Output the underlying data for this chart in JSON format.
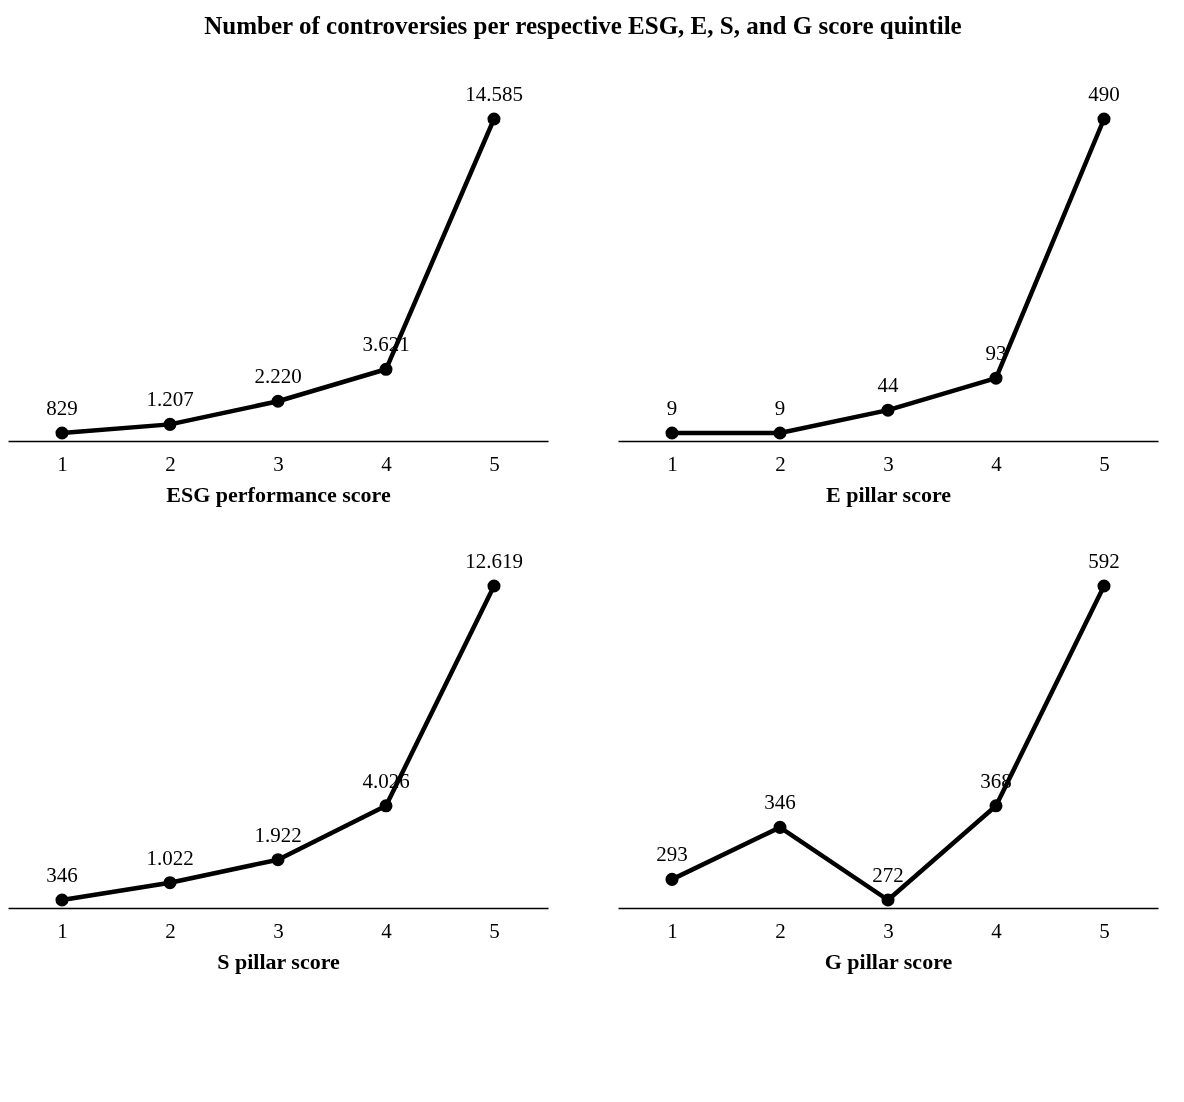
{
  "chart_data": [
    {
      "type": "line",
      "title": "Number of controversies per respective ESG, E, S, and G score quintile",
      "xlabel": "ESG performance score",
      "categories": [
        "1",
        "2",
        "3",
        "4",
        "5"
      ],
      "tick_labels": "x",
      "marker": "circle",
      "grid": false,
      "series": [
        {
          "color": "#000000",
          "values": [
            829,
            1207,
            2220,
            3621,
            14585
          ],
          "value_labels": [
            "829",
            "1.207",
            "2.220",
            "3.621",
            "14.585"
          ]
        }
      ]
    },
    {
      "type": "line",
      "xlabel": "E pillar score",
      "categories": [
        "1",
        "2",
        "3",
        "4",
        "5"
      ],
      "tick_labels": "x",
      "marker": "circle",
      "grid": false,
      "series": [
        {
          "color": "#000000",
          "values": [
            9,
            9,
            44,
            93,
            490
          ],
          "value_labels": [
            "9",
            "9",
            "44",
            "93",
            "490"
          ]
        }
      ]
    },
    {
      "type": "line",
      "xlabel": "S pillar score",
      "categories": [
        "1",
        "2",
        "3",
        "4",
        "5"
      ],
      "tick_labels": "x",
      "marker": "circle",
      "grid": false,
      "series": [
        {
          "color": "#000000",
          "values": [
            346,
            1022,
            1922,
            4026,
            12619
          ],
          "value_labels": [
            "346",
            "1.022",
            "1.922",
            "4.026",
            "12.619"
          ]
        }
      ]
    },
    {
      "type": "line",
      "xlabel": "G pillar score",
      "categories": [
        "1",
        "2",
        "3",
        "4",
        "5"
      ],
      "tick_labels": "x",
      "marker": "circle",
      "grid": false,
      "series": [
        {
          "color": "#000000",
          "values": [
            293,
            346,
            272,
            368,
            592
          ],
          "value_labels": [
            "293",
            "346",
            "272",
            "368",
            "592"
          ]
        }
      ]
    }
  ]
}
